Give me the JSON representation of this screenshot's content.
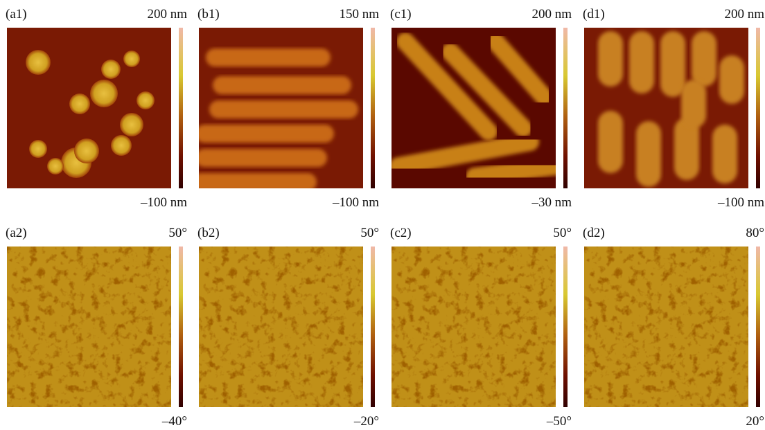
{
  "panels": [
    {
      "label": "(a1)",
      "top": "200 nm",
      "bottom": "–100 nm"
    },
    {
      "label": "(b1)",
      "top": "150 nm",
      "bottom": "–100 nm"
    },
    {
      "label": "(c1)",
      "top": "200 nm",
      "bottom": "–30 nm"
    },
    {
      "label": "(d1)",
      "top": "200 nm",
      "bottom": "–100 nm"
    },
    {
      "label": "(a2)",
      "top": "50°",
      "bottom": "–40°"
    },
    {
      "label": "(b2)",
      "top": "50°",
      "bottom": "–20°"
    },
    {
      "label": "(c2)",
      "top": "50°",
      "bottom": "–50°"
    },
    {
      "label": "(d2)",
      "top": "80°",
      "bottom": "20°"
    }
  ]
}
